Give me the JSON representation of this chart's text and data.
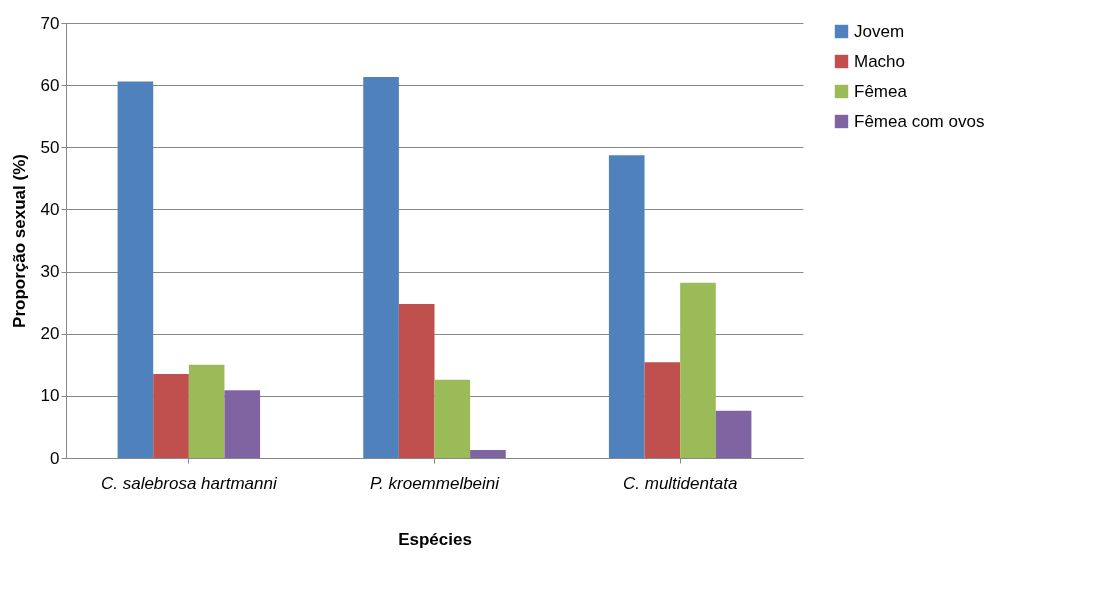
{
  "chart_data": {
    "type": "bar",
    "xlabel": "Espécies",
    "ylabel": "Proporção sexual (%)",
    "categories": [
      "C. salebrosa hartmanni",
      "P. kroemmelbeini",
      "C. multidentata"
    ],
    "series": [
      {
        "name": "Jovem",
        "color": "#4f81bd",
        "values": [
          60.6,
          61.3,
          48.7
        ]
      },
      {
        "name": "Macho",
        "color": "#c0504d",
        "values": [
          13.5,
          24.8,
          15.4
        ]
      },
      {
        "name": "Fêmea",
        "color": "#9bbb59",
        "values": [
          15.0,
          12.6,
          28.2
        ]
      },
      {
        "name": "Fêmea com ovos",
        "color": "#8064a2",
        "values": [
          10.9,
          1.3,
          7.6
        ]
      }
    ],
    "ylim": [
      0,
      70
    ],
    "yticks": [
      0,
      10,
      20,
      30,
      40,
      50,
      60,
      70
    ],
    "grid": "y",
    "legend": "right"
  }
}
